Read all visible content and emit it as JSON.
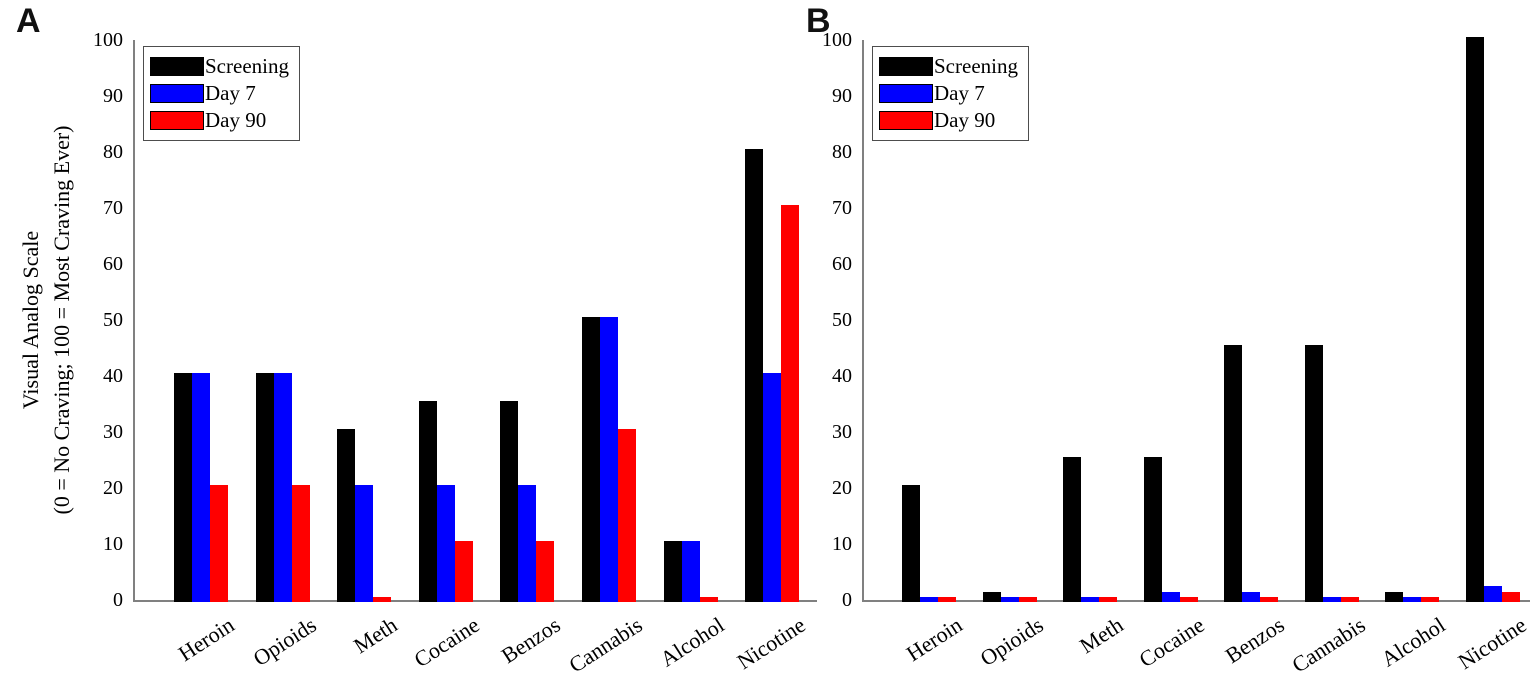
{
  "chart_data": [
    {
      "type": "bar",
      "panel": "A",
      "ylabel_line1": "Visual Analog Scale",
      "ylabel_line2": "(0 = No Craving; 100 = Most Craving Ever)",
      "ylabel": "Visual Analog Scale (0 = No Craving; 100 = Most Craving Ever)",
      "categories": [
        "Heroin",
        "Opioids",
        "Meth",
        "Cocaine",
        "Benzos",
        "Cannabis",
        "Alcohol",
        "Nicotine"
      ],
      "series": [
        {
          "name": "Screening",
          "color": "#000000",
          "values": [
            40.5,
            40.5,
            30.5,
            35.5,
            35.5,
            50.5,
            10.5,
            80.5
          ]
        },
        {
          "name": "Day 7",
          "color": "#0000ff",
          "values": [
            40.5,
            40.5,
            20.5,
            20.5,
            20.5,
            50.5,
            10.5,
            40.5
          ]
        },
        {
          "name": "Day 90",
          "color": "#ff0000",
          "values": [
            20.5,
            20.5,
            0.5,
            10.5,
            10.5,
            30.5,
            0.5,
            70.5
          ]
        }
      ],
      "ylim": [
        0,
        100
      ],
      "yticks": [
        0,
        10,
        20,
        30,
        40,
        50,
        60,
        70,
        80,
        90,
        100
      ],
      "grid": false,
      "legend_position": "top-left",
      "axis_color": "#808080"
    },
    {
      "type": "bar",
      "panel": "B",
      "ylabel": "",
      "categories": [
        "Heroin",
        "Opioids",
        "Meth",
        "Cocaine",
        "Benzos",
        "Cannabis",
        "Alcohol",
        "Nicotine"
      ],
      "series": [
        {
          "name": "Screening",
          "color": "#000000",
          "values": [
            20.5,
            1.5,
            25.5,
            25.5,
            45.5,
            45.5,
            1.5,
            100.5
          ]
        },
        {
          "name": "Day 7",
          "color": "#0000ff",
          "values": [
            0.5,
            0.5,
            0.5,
            1.5,
            1.5,
            0.5,
            0.5,
            2.5
          ]
        },
        {
          "name": "Day 90",
          "color": "#ff0000",
          "values": [
            0.5,
            0.5,
            0.5,
            0.5,
            0.5,
            0.5,
            0.5,
            1.5
          ]
        }
      ],
      "ylim": [
        0,
        100
      ],
      "yticks": [
        0,
        10,
        20,
        30,
        40,
        50,
        60,
        70,
        80,
        90,
        100
      ],
      "grid": false,
      "legend_position": "top-left",
      "axis_color": "#808080"
    }
  ]
}
